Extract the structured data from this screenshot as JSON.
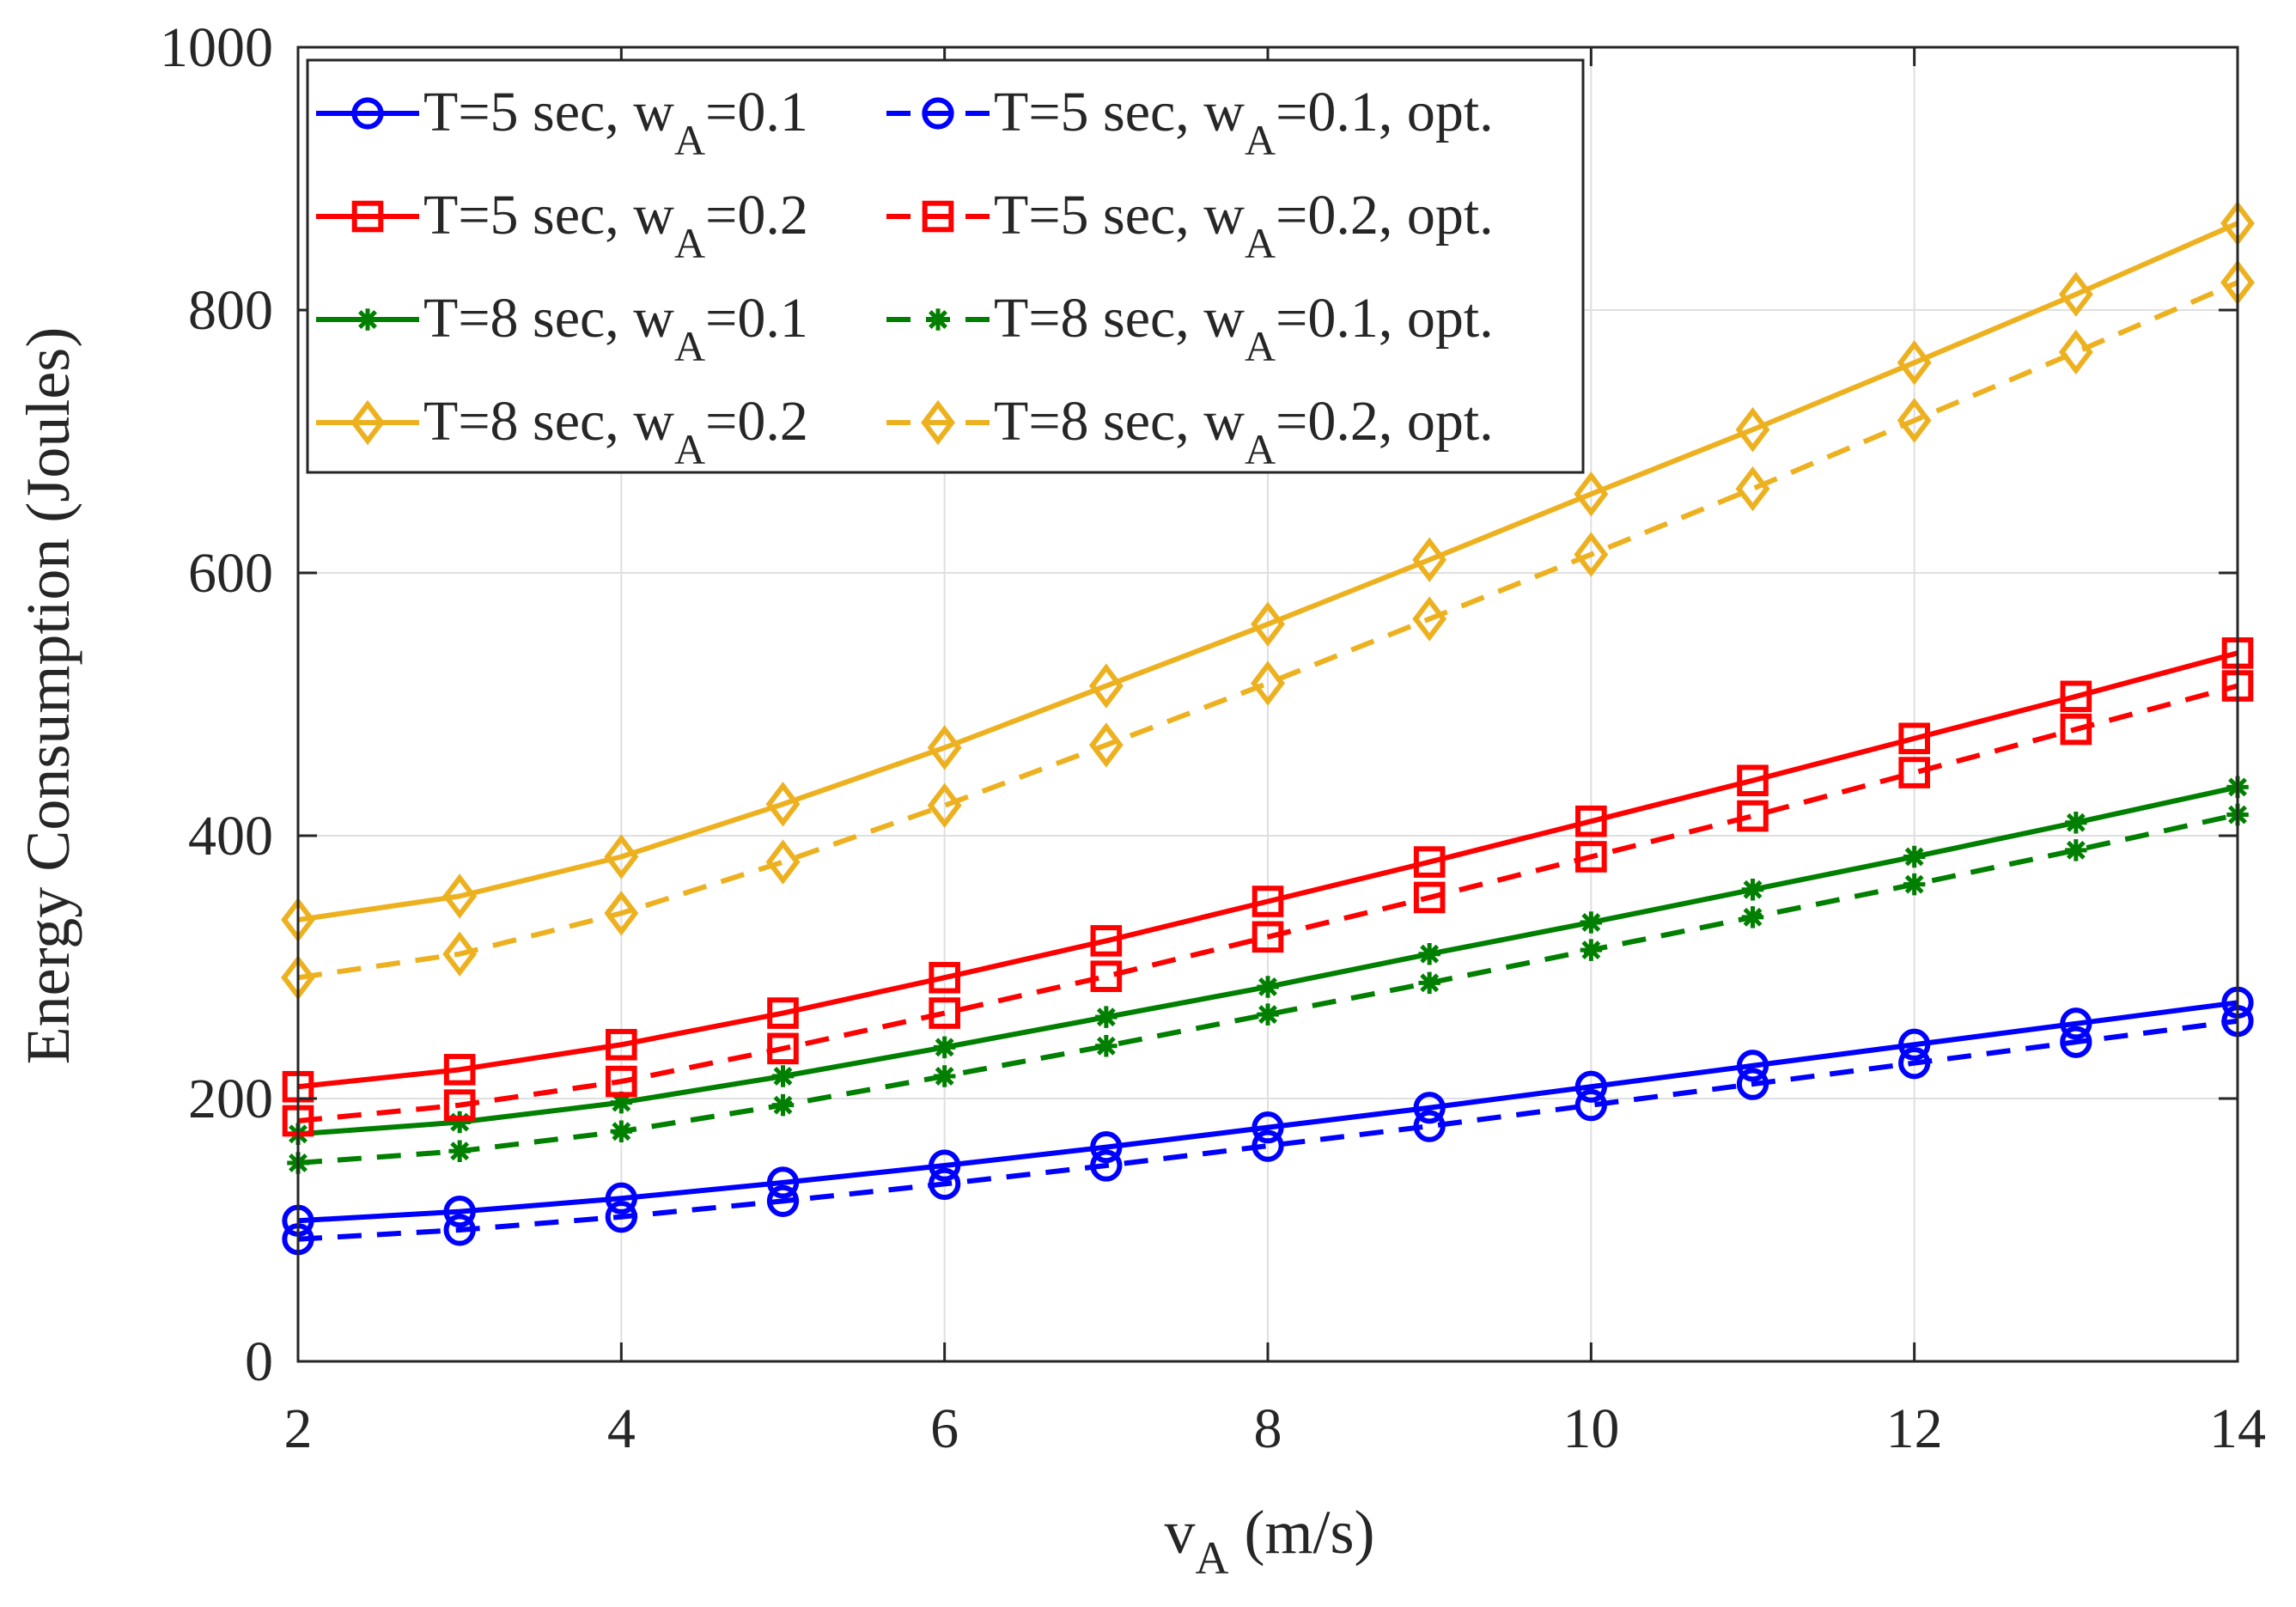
{
  "chart_data": {
    "type": "line",
    "xlabel_main": "v",
    "xlabel_sub": "A",
    "xlabel_rest": " (m/s)",
    "ylabel": "Energy Consumption (Joules)",
    "xlim": [
      2,
      14
    ],
    "ylim": [
      0,
      1000
    ],
    "xticks": [
      2,
      4,
      6,
      8,
      10,
      12,
      14
    ],
    "yticks": [
      0,
      200,
      400,
      600,
      800,
      1000
    ],
    "grid": true,
    "legend_position": "top-left",
    "x": [
      2,
      3,
      4,
      5,
      6,
      7,
      8,
      9,
      10,
      11,
      12,
      13,
      14
    ],
    "series": [
      {
        "id": "s1",
        "name": "T=5 sec, w_A=0.1",
        "label_pre": "T=5 sec, w",
        "label_sub": "A",
        "label_post": "=0.1",
        "color": "#0000ff",
        "dash": "solid",
        "marker": "circle",
        "values": [
          107,
          114,
          124,
          136,
          149,
          163,
          178,
          193,
          209,
          225,
          241,
          257,
          273
        ]
      },
      {
        "id": "s2",
        "name": "T=5 sec, w_A=0.2",
        "label_pre": "T=5 sec, w",
        "label_sub": "A",
        "label_post": "=0.2",
        "color": "#ff0000",
        "dash": "solid",
        "marker": "square",
        "values": [
          209,
          222,
          241,
          265,
          292,
          320,
          350,
          380,
          411,
          442,
          474,
          506,
          539
        ]
      },
      {
        "id": "s3",
        "name": "T=8 sec, w_A=0.1",
        "label_pre": "T=8 sec, w",
        "label_sub": "A",
        "label_post": "=0.1",
        "color": "#007f00",
        "dash": "solid",
        "marker": "star",
        "values": [
          173,
          182,
          197,
          217,
          239,
          262,
          285,
          310,
          334,
          359,
          384,
          410,
          437
        ]
      },
      {
        "id": "s4",
        "name": "T=8 sec, w_A=0.2",
        "label_pre": "T=8 sec, w",
        "label_sub": "A",
        "label_post": "=0.2",
        "color": "#edb120",
        "dash": "solid",
        "marker": "diamond",
        "values": [
          336,
          354,
          384,
          424,
          467,
          514,
          561,
          610,
          660,
          709,
          760,
          812,
          866
        ]
      },
      {
        "id": "s5",
        "name": "T=5 sec, w_A=0.1, opt.",
        "label_pre": "T=5 sec, w",
        "label_sub": "A",
        "label_post": "=0.1, opt.",
        "color": "#0000ff",
        "dash": "dashed",
        "marker": "circle",
        "values": [
          93,
          100,
          110,
          122,
          135,
          149,
          164,
          179,
          195,
          211,
          227,
          243,
          259
        ]
      },
      {
        "id": "s6",
        "name": "T=5 sec, w_A=0.2, opt.",
        "label_pre": "T=5 sec, w",
        "label_sub": "A",
        "label_post": "=0.2, opt.",
        "color": "#ff0000",
        "dash": "dashed",
        "marker": "square",
        "values": [
          183,
          195,
          213,
          238,
          265,
          293,
          323,
          353,
          384,
          415,
          448,
          481,
          514
        ]
      },
      {
        "id": "s7",
        "name": "T=8 sec, w_A=0.1, opt.",
        "label_pre": "T=8 sec, w",
        "label_sub": "A",
        "label_post": "=0.1, opt.",
        "color": "#007f00",
        "dash": "dashed",
        "marker": "star",
        "values": [
          151,
          160,
          175,
          195,
          217,
          240,
          264,
          288,
          313,
          338,
          363,
          389,
          416
        ]
      },
      {
        "id": "s8",
        "name": "T=8 sec, w_A=0.2, opt.",
        "label_pre": "T=8 sec, w",
        "label_sub": "A",
        "label_post": "=0.2, opt.",
        "color": "#edb120",
        "dash": "dashed",
        "marker": "diamond",
        "values": [
          292,
          310,
          341,
          380,
          423,
          469,
          516,
          565,
          614,
          664,
          716,
          768,
          821
        ]
      }
    ]
  }
}
